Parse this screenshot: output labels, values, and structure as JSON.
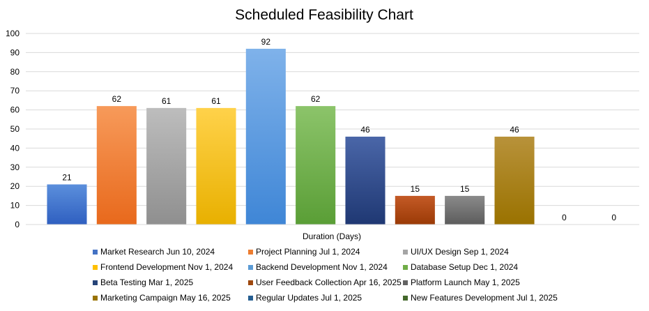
{
  "chart_data": {
    "type": "bar",
    "title": "Scheduled Feasibility  Chart",
    "xlabel": "Duration (Days)",
    "ylabel": "",
    "ylim": [
      0,
      100
    ],
    "yticks": [
      0,
      10,
      20,
      30,
      40,
      50,
      60,
      70,
      80,
      90,
      100
    ],
    "grid": true,
    "legend_position": "bottom",
    "categories": [
      "Market Research Jun 10, 2024",
      "Project Planning Jul 1, 2024",
      "UI/UX Design Sep 1, 2024",
      "Frontend Development Nov 1, 2024",
      "Backend Development Nov 1, 2024",
      "Database Setup Dec 1, 2024",
      "Beta Testing Mar 1, 2025",
      "User Feedback Collection Apr 16, 2025",
      "Platform Launch May 1, 2025",
      "Marketing Campaign May 16, 2025",
      "Regular Updates Jul 1, 2025",
      "New Features Development Jul 1, 2025"
    ],
    "values": [
      21,
      62,
      61,
      61,
      92,
      62,
      46,
      15,
      15,
      46,
      0,
      0
    ],
    "colors": [
      [
        "#5b8fdc",
        "#2f5fc0"
      ],
      [
        "#f79a5a",
        "#e8691c"
      ],
      [
        "#bdbdbd",
        "#8f8f8f"
      ],
      [
        "#ffd24a",
        "#e8b000"
      ],
      [
        "#7fb2ea",
        "#3f86d6"
      ],
      [
        "#8cc46a",
        "#5a9e36"
      ],
      [
        "#4a66a8",
        "#1f3873"
      ],
      [
        "#c45a26",
        "#9a3a06"
      ],
      [
        "#8a8a8a",
        "#5c5c5c"
      ],
      [
        "#b8923a",
        "#9a7200"
      ],
      [
        "#4a66a8",
        "#1f3873"
      ],
      [
        "#4c8a3a",
        "#2e6a1f"
      ]
    ],
    "legend_colors": [
      "#4472c4",
      "#ed7d31",
      "#a5a5a5",
      "#ffc000",
      "#5b9bd5",
      "#70ad47",
      "#264478",
      "#9e480e",
      "#636363",
      "#997300",
      "#255e91",
      "#43682b"
    ]
  }
}
